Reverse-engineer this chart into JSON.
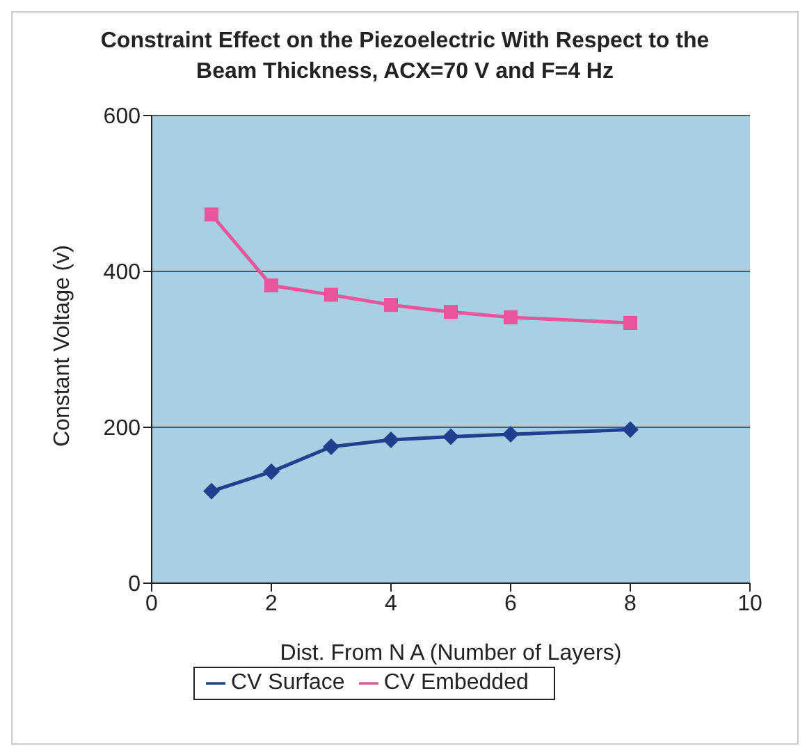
{
  "chart_data": {
    "type": "line",
    "title": "Constraint Effect on the Piezoelectric With Respect to the Beam Thickness, ACX=70 V and  F=4 Hz",
    "xlabel": "Dist. From N A (Number of Layers)",
    "ylabel": "Constant Voltage (v)",
    "x": [
      1,
      2,
      3,
      4,
      5,
      6,
      8
    ],
    "series": [
      {
        "name": "CV Surface",
        "color": "#1f3f8f",
        "marker": "diamond",
        "values": [
          118,
          143,
          175,
          184,
          188,
          191,
          197
        ]
      },
      {
        "name": "CV Embedded",
        "color": "#e8559c",
        "marker": "square",
        "values": [
          473,
          382,
          370,
          357,
          348,
          341,
          334
        ]
      }
    ],
    "xlim": [
      0,
      10
    ],
    "xticks": [
      0,
      2,
      4,
      6,
      8,
      10
    ],
    "ylim": [
      0,
      600
    ],
    "yticks": [
      0,
      200,
      400,
      600
    ],
    "grid": "y",
    "legend": "bottom"
  }
}
